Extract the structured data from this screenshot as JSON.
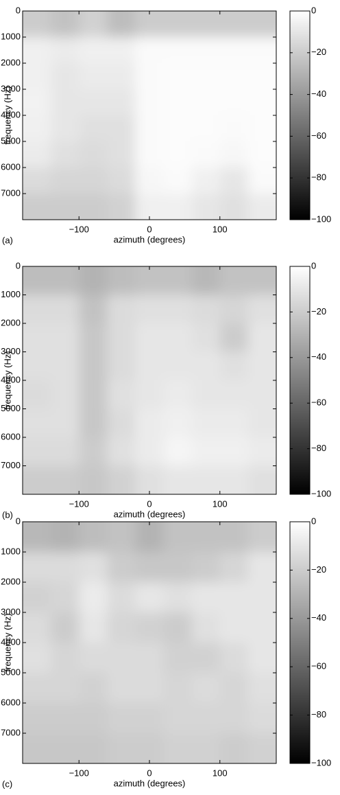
{
  "chart_data": [
    {
      "type": "heatmap",
      "label": "(a)",
      "x_label": "azimuth (degrees)",
      "y_label": "frequency (Hz)",
      "x": [
        -160,
        -120,
        -80,
        -40,
        0,
        40,
        80,
        120,
        160
      ],
      "y": [
        500,
        1500,
        2500,
        3500,
        4500,
        5500,
        6500,
        7500
      ],
      "z": [
        [
          -20,
          -24,
          -18,
          -26,
          -20,
          -20,
          -20,
          -20,
          -20
        ],
        [
          -6,
          -8,
          -6,
          -6,
          -2,
          -2,
          -2,
          -2,
          -2
        ],
        [
          -6,
          -10,
          -8,
          -8,
          -2,
          -1,
          -1,
          -1,
          -1
        ],
        [
          -5,
          -10,
          -10,
          -10,
          -2,
          -1,
          -1,
          -1,
          -1
        ],
        [
          -6,
          -10,
          -12,
          -12,
          -2,
          -1,
          -1,
          -2,
          -1
        ],
        [
          -8,
          -12,
          -14,
          -12,
          -2,
          -1,
          -2,
          -3,
          -1
        ],
        [
          -14,
          -16,
          -16,
          -14,
          -3,
          -2,
          -6,
          -10,
          -2
        ],
        [
          -20,
          -20,
          -20,
          -18,
          -6,
          -6,
          -10,
          -12,
          -8
        ]
      ],
      "xlim": [
        -180,
        180
      ],
      "ylim": [
        0,
        8000
      ],
      "y_inverted": true,
      "xticks": [
        {
          "value": -100,
          "label": "−100"
        },
        0,
        100
      ],
      "yticks": [
        0,
        1000,
        2000,
        3000,
        4000,
        5000,
        6000,
        7000
      ],
      "colormap": "gray",
      "clim": [
        -100,
        0
      ],
      "colorbar_ticks": [
        0,
        {
          "value": -20,
          "label": "−20"
        },
        {
          "value": -40,
          "label": "−40"
        },
        {
          "value": -60,
          "label": "−60"
        },
        {
          "value": -80,
          "label": "−80"
        },
        {
          "value": -100,
          "label": "−100"
        }
      ]
    },
    {
      "type": "heatmap",
      "label": "(b)",
      "x_label": "azimuth (degrees)",
      "y_label": "frequency (Hz)",
      "x": [
        -160,
        -120,
        -80,
        -40,
        0,
        40,
        80,
        120,
        160
      ],
      "y": [
        500,
        1500,
        2500,
        3500,
        4500,
        5500,
        6500,
        7500
      ],
      "z": [
        [
          -26,
          -26,
          -30,
          -26,
          -24,
          -24,
          -28,
          -24,
          -24
        ],
        [
          -14,
          -14,
          -24,
          -14,
          -12,
          -12,
          -14,
          -16,
          -12
        ],
        [
          -12,
          -12,
          -22,
          -14,
          -10,
          -10,
          -12,
          -20,
          -10
        ],
        [
          -12,
          -12,
          -22,
          -14,
          -10,
          -10,
          -10,
          -12,
          -10
        ],
        [
          -14,
          -12,
          -22,
          -12,
          -10,
          -8,
          -10,
          -10,
          -10
        ],
        [
          -12,
          -12,
          -22,
          -14,
          -8,
          -6,
          -8,
          -8,
          -10
        ],
        [
          -14,
          -14,
          -20,
          -12,
          -8,
          -4,
          -6,
          -6,
          -8
        ],
        [
          -20,
          -20,
          -22,
          -18,
          -12,
          -10,
          -10,
          -10,
          -12
        ]
      ],
      "xlim": [
        -180,
        180
      ],
      "ylim": [
        0,
        8000
      ],
      "y_inverted": true,
      "xticks": [
        {
          "value": -100,
          "label": "−100"
        },
        0,
        100
      ],
      "yticks": [
        0,
        1000,
        2000,
        3000,
        4000,
        5000,
        6000,
        7000
      ],
      "colormap": "gray",
      "clim": [
        -100,
        0
      ],
      "colorbar_ticks": [
        0,
        {
          "value": -20,
          "label": "−20"
        },
        {
          "value": -40,
          "label": "−40"
        },
        {
          "value": -60,
          "label": "−60"
        },
        {
          "value": -80,
          "label": "−80"
        },
        {
          "value": -100,
          "label": "−100"
        }
      ]
    },
    {
      "type": "heatmap",
      "label": "(c)",
      "x_label": "azimuth (degrees)",
      "y_label": "frequency (Hz)",
      "x": [
        -160,
        -120,
        -80,
        -40,
        0,
        40,
        80,
        120,
        160
      ],
      "y": [
        500,
        1500,
        2500,
        3500,
        4500,
        5500,
        6500,
        7500
      ],
      "z": [
        [
          -28,
          -30,
          -26,
          -24,
          -30,
          -24,
          -24,
          -24,
          -20
        ],
        [
          -14,
          -14,
          -12,
          -20,
          -22,
          -22,
          -20,
          -16,
          -10
        ],
        [
          -18,
          -16,
          -8,
          -14,
          -10,
          -12,
          -10,
          -10,
          -10
        ],
        [
          -14,
          -20,
          -10,
          -16,
          -18,
          -20,
          -12,
          -10,
          -10
        ],
        [
          -12,
          -16,
          -14,
          -14,
          -14,
          -18,
          -18,
          -14,
          -10
        ],
        [
          -16,
          -16,
          -18,
          -14,
          -14,
          -16,
          -14,
          -16,
          -12
        ],
        [
          -20,
          -20,
          -20,
          -18,
          -18,
          -16,
          -16,
          -16,
          -14
        ],
        [
          -22,
          -22,
          -22,
          -20,
          -20,
          -18,
          -18,
          -20,
          -18
        ]
      ],
      "xlim": [
        -180,
        180
      ],
      "ylim": [
        0,
        8000
      ],
      "y_inverted": true,
      "xticks": [
        {
          "value": -100,
          "label": "−100"
        },
        0,
        100
      ],
      "yticks": [
        0,
        1000,
        2000,
        3000,
        4000,
        5000,
        6000,
        7000
      ],
      "colormap": "gray",
      "clim": [
        -100,
        0
      ],
      "colorbar_ticks": [
        0,
        {
          "value": -20,
          "label": "−20"
        },
        {
          "value": -40,
          "label": "−40"
        },
        {
          "value": -60,
          "label": "−60"
        },
        {
          "value": -80,
          "label": "−80"
        },
        {
          "value": -100,
          "label": "−100"
        }
      ]
    }
  ]
}
